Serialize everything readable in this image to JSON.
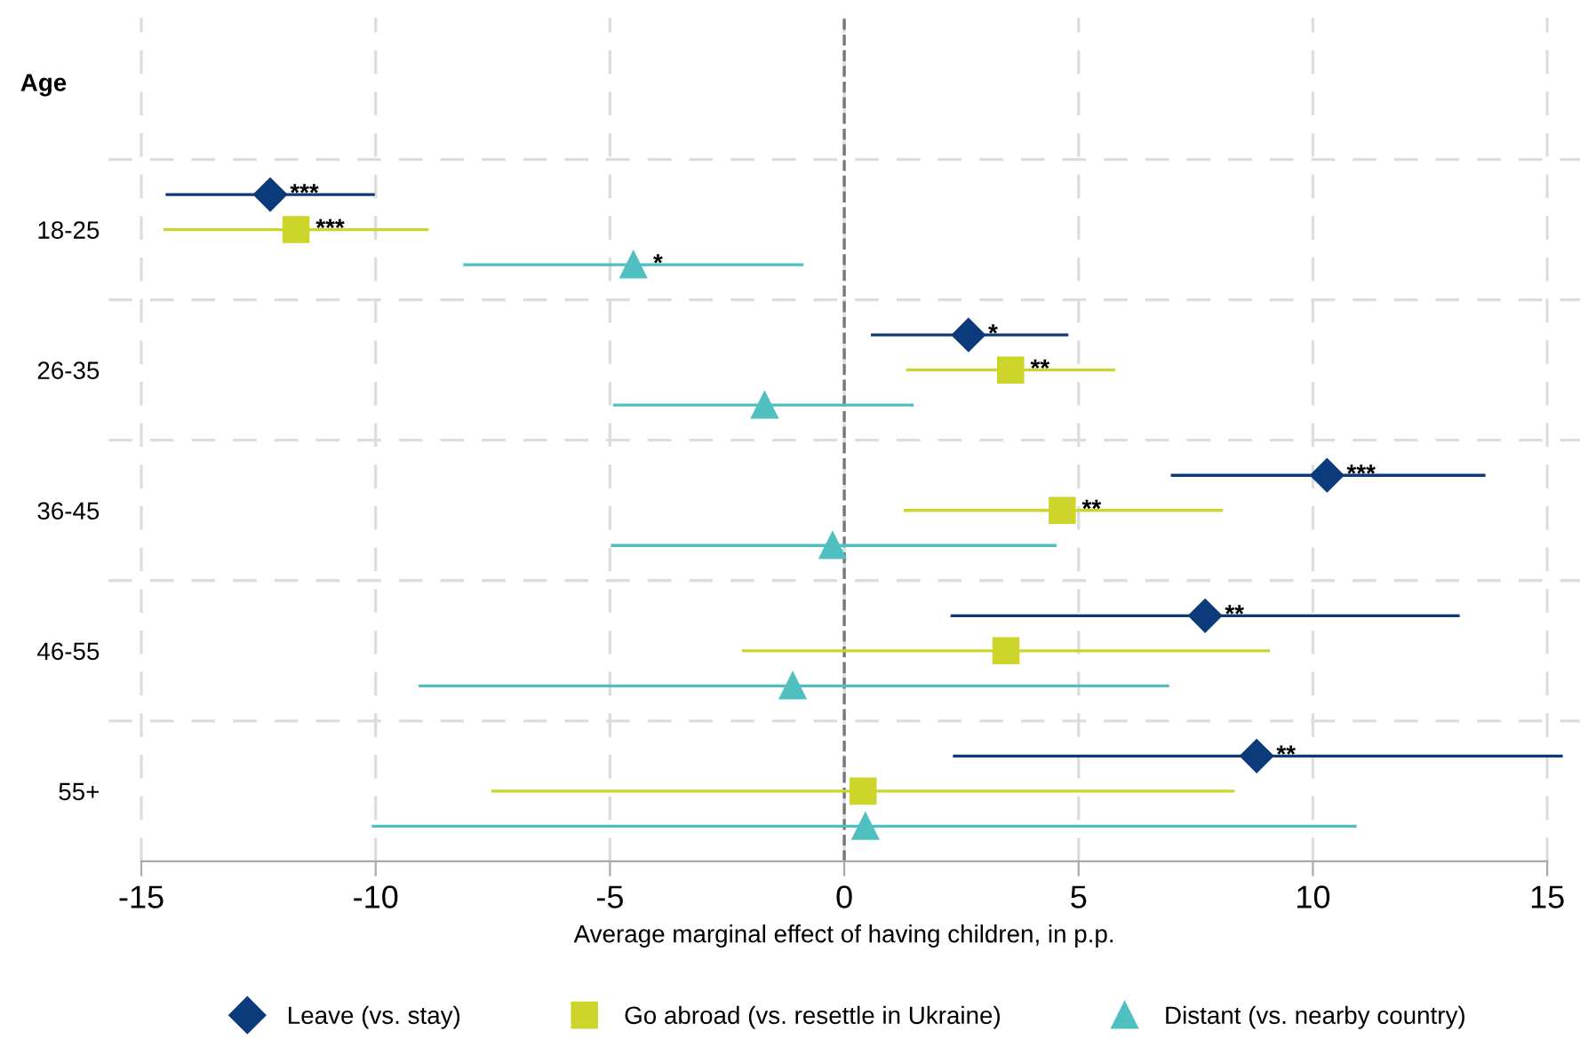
{
  "chart_data": {
    "type": "scatter",
    "orientation": "horizontal",
    "ylabel": "Age",
    "xlabel": "Average marginal effect of having children, in p.p.",
    "categories": [
      "18-25",
      "26-35",
      "36-45",
      "46-55",
      "55+"
    ],
    "series": [
      {
        "name": "Leave (vs. stay)",
        "color": "#0c3b7c",
        "marker": "diamond",
        "values": [
          -12.25,
          2.65,
          10.3,
          7.7,
          8.8
        ],
        "errors": [
          [
            -14.45,
            -10.05
          ],
          [
            0.6,
            4.75
          ],
          [
            7.0,
            13.65
          ],
          [
            2.3,
            13.1
          ],
          [
            2.35,
            15.3
          ]
        ],
        "value_labels": [
          "***",
          "*",
          "***",
          "**",
          "**"
        ]
      },
      {
        "name": "Go abroad (vs. resettle in Ukraine)",
        "color": "#cdd52b",
        "marker": "square",
        "values": [
          -11.7,
          3.55,
          4.65,
          3.45,
          0.4
        ],
        "errors": [
          [
            -14.5,
            -8.9
          ],
          [
            1.35,
            5.75
          ],
          [
            1.3,
            8.05
          ],
          [
            -2.15,
            9.05
          ],
          [
            -7.5,
            8.3
          ]
        ],
        "value_labels": [
          "***",
          "**",
          "**",
          null,
          null
        ]
      },
      {
        "name": "Distant (vs. nearby country)",
        "color": "#4fbfc0",
        "marker": "triangle",
        "values": [
          -4.5,
          -1.7,
          -0.25,
          -1.1,
          0.45
        ],
        "errors": [
          [
            -8.1,
            -0.9
          ],
          [
            -4.9,
            1.45
          ],
          [
            -4.95,
            4.5
          ],
          [
            -9.05,
            6.9
          ],
          [
            -10.05,
            10.9
          ]
        ],
        "value_labels": [
          "*",
          null,
          null,
          null,
          null
        ]
      }
    ],
    "xlim": [
      -15.7,
      15.7
    ],
    "xticks": [
      -15,
      -10,
      -5,
      0,
      5,
      10,
      15
    ],
    "ref_lines": [
      {
        "axis": "x",
        "value": 0,
        "color": "#777777",
        "line_style": "dashed"
      }
    ],
    "grid": true,
    "legend": "bottom"
  }
}
